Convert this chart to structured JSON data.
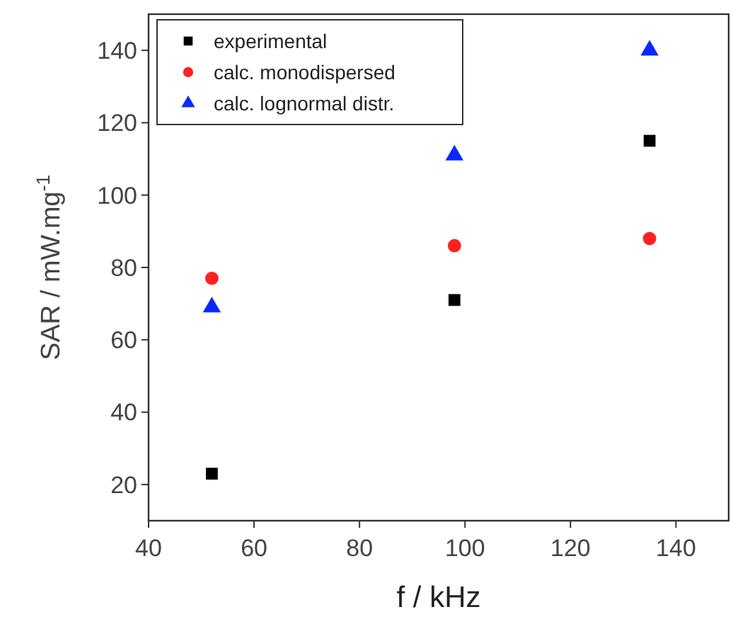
{
  "chart_data": {
    "type": "scatter",
    "xlabel": "f / kHz",
    "ylabel": "SAR / mW.mg$^{-1}$",
    "x": [
      52,
      98,
      135
    ],
    "series": [
      {
        "name": "experimental",
        "color": "#000000",
        "marker": "square",
        "values": [
          23,
          71,
          115
        ]
      },
      {
        "name": "calc. monodispersed",
        "color": "#ff2020",
        "marker": "circle",
        "values": [
          77,
          86,
          88
        ]
      },
      {
        "name": "calc. lognormal distr.",
        "color": "#0a28ff",
        "marker": "triangle",
        "values": [
          69,
          111,
          140
        ]
      }
    ],
    "xlim": [
      40,
      150
    ],
    "xticks": [
      40,
      60,
      80,
      100,
      120,
      140
    ],
    "ylim": [
      10,
      150
    ],
    "yticks": [
      20,
      40,
      60,
      80,
      100,
      120,
      140
    ],
    "grid": false,
    "legend": "top left"
  }
}
